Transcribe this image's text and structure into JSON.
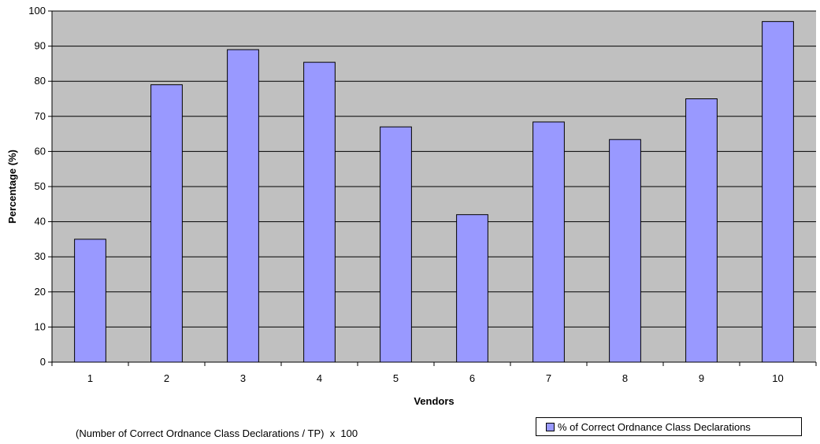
{
  "chart_data": {
    "type": "bar",
    "categories": [
      "1",
      "2",
      "3",
      "4",
      "5",
      "6",
      "7",
      "8",
      "9",
      "10"
    ],
    "series": [
      {
        "name": "% of Correct Ordnance Class Declarations",
        "values": [
          35,
          79,
          89,
          85.4,
          67,
          42,
          68.4,
          63.4,
          75,
          97
        ]
      }
    ],
    "xlabel": "Vendors",
    "ylabel": "Percentage (%)",
    "ylim": [
      0,
      100
    ],
    "yticks": [
      0,
      10,
      20,
      30,
      40,
      50,
      60,
      70,
      80,
      90,
      100
    ],
    "grid": true,
    "legend_position": "bottom-right",
    "colors": {
      "bar": "#9999ff",
      "plot_background": "#c0c0c0",
      "gridline": "#000000"
    }
  },
  "note": "(Number of Correct Ordnance Class Declarations / TP)  x  100"
}
